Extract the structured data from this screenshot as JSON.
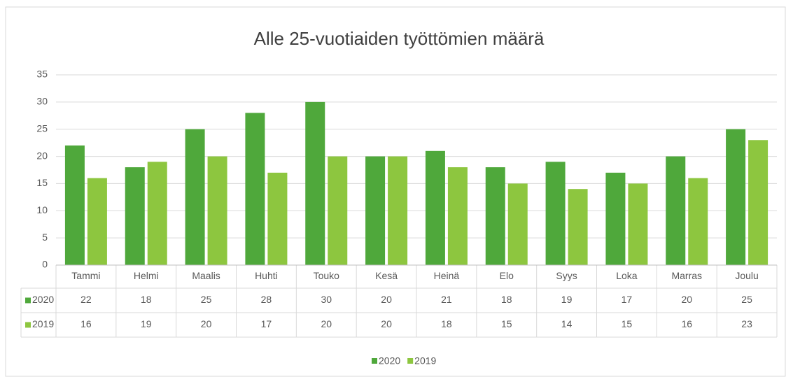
{
  "chart_data": {
    "type": "bar",
    "title": "Alle 25-vuotiaiden työttömien määrä",
    "categories": [
      "Tammi",
      "Helmi",
      "Maalis",
      "Huhti",
      "Touko",
      "Kesä",
      "Heinä",
      "Elo",
      "Syys",
      "Loka",
      "Marras",
      "Joulu"
    ],
    "series": [
      {
        "name": "2020",
        "color": "#4fa83b",
        "values": [
          22,
          18,
          25,
          28,
          30,
          20,
          21,
          18,
          19,
          17,
          20,
          25
        ]
      },
      {
        "name": "2019",
        "color": "#8dc63f",
        "values": [
          16,
          19,
          20,
          17,
          20,
          20,
          18,
          15,
          14,
          15,
          16,
          23
        ]
      }
    ],
    "ylim": [
      0,
      35
    ],
    "yticks": [
      0,
      5,
      10,
      15,
      20,
      25,
      30,
      35
    ],
    "grid": true,
    "legend": "bottom",
    "data_table": true
  }
}
